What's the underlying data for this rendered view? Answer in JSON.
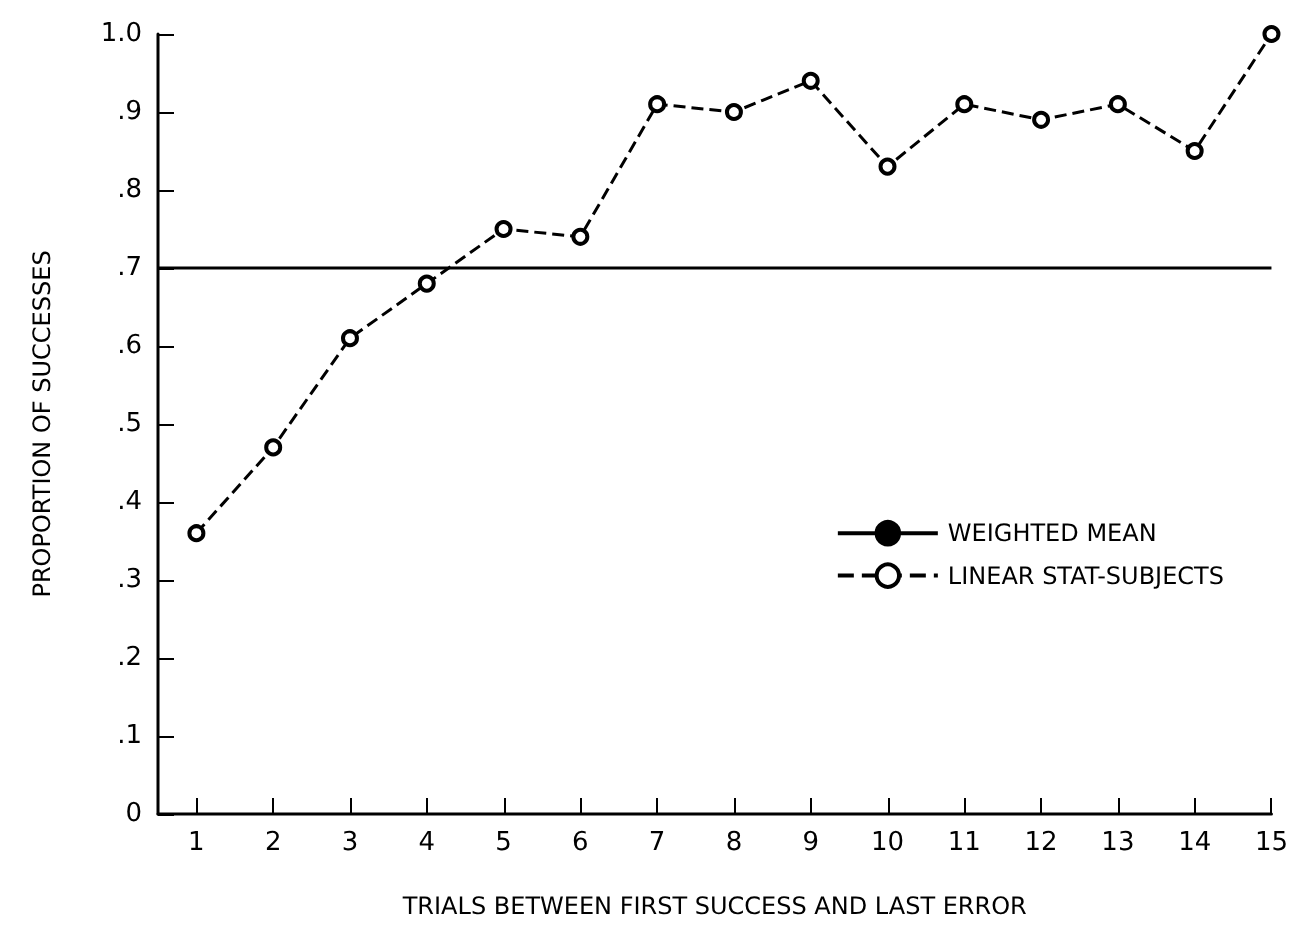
{
  "chart_data": {
    "type": "line",
    "xlabel": "TRIALS BETWEEN FIRST SUCCESS AND LAST ERROR",
    "ylabel": "PROPORTION OF SUCCESSES",
    "xlim": [
      0.5,
      15
    ],
    "xticks": [
      1,
      2,
      3,
      4,
      5,
      6,
      7,
      8,
      9,
      10,
      11,
      12,
      13,
      14,
      15
    ],
    "ylim": [
      0,
      1.0
    ],
    "yticks": [
      0,
      {
        "value": 0.1,
        "label": ".1"
      },
      {
        "value": 0.2,
        "label": ".2"
      },
      {
        "value": 0.3,
        "label": ".3"
      },
      {
        "value": 0.4,
        "label": ".4"
      },
      {
        "value": 0.5,
        "label": ".5"
      },
      {
        "value": 0.6,
        "label": ".6"
      },
      {
        "value": 0.7,
        "label": ".7"
      },
      {
        "value": 0.8,
        "label": ".8"
      },
      {
        "value": 0.9,
        "label": ".9"
      },
      {
        "value": 1.0,
        "label": "1.0"
      }
    ],
    "grid": false,
    "legend": "right",
    "series": [
      {
        "name": "WEIGHTED MEAN",
        "color": "#000000",
        "x": [
          0.5,
          15
        ],
        "values": [
          0.7,
          0.7
        ],
        "marker": "none",
        "line_style": "solid"
      },
      {
        "name": "LINEAR STAT-SUBJECTS",
        "color": "#000000",
        "x": [
          1,
          2,
          3,
          4,
          5,
          6,
          7,
          8,
          9,
          10,
          11,
          12,
          13,
          14,
          15
        ],
        "values": [
          0.36,
          0.47,
          0.61,
          0.68,
          0.75,
          0.74,
          0.91,
          0.9,
          0.94,
          0.83,
          0.91,
          0.89,
          0.91,
          0.85,
          1.0
        ],
        "marker": "circle",
        "line_style": "dashed"
      }
    ]
  }
}
